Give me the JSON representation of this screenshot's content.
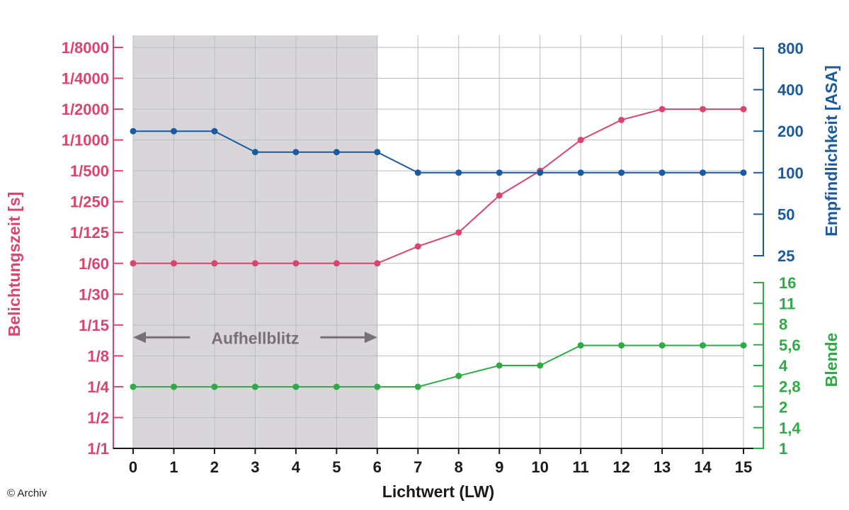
{
  "credit": "© Archiv",
  "chart_data": {
    "type": "line",
    "xlabel": "Lichtwert (LW)",
    "x": [
      0,
      1,
      2,
      3,
      4,
      5,
      6,
      7,
      8,
      9,
      10,
      11,
      12,
      13,
      14,
      15
    ],
    "xlim": [
      0,
      15
    ],
    "grid": true,
    "colors": {
      "shutter": "#d9456e",
      "iso": "#1a5aa0",
      "aperture": "#2eaa46",
      "shade": "#d9d6da",
      "annotation": "#7a6e7a"
    },
    "shaded_region": {
      "x_from": 0,
      "x_to": 6
    },
    "annotation": {
      "text": "Aufhellblitz",
      "from": 0,
      "to": 6,
      "shutter_level": 3.6,
      "style": "double-arrow"
    },
    "axes": {
      "left": {
        "label": "Belichtungszeit [s]",
        "ticks": [
          "1/1",
          "1/2",
          "1/4",
          "1/8",
          "1/15",
          "1/30",
          "1/60",
          "1/125",
          "1/250",
          "1/500",
          "1/1000",
          "1/2000",
          "1/4000",
          "1/8000"
        ],
        "scale": "log2 stops (index 0 = 1/1, index 13 = 1/8000)"
      },
      "right_top": {
        "label": "Empfindlichkeit [ASA]",
        "ticks": [
          25,
          50,
          100,
          200,
          400,
          800
        ],
        "scale": "log"
      },
      "right_bottom": {
        "label": "Blende",
        "ticks": [
          "1",
          "1,4",
          "2",
          "2,8",
          "4",
          "5,6",
          "8",
          "11",
          "16"
        ],
        "scale": "f-stops"
      }
    },
    "series": [
      {
        "key": "shutter",
        "axis": "left",
        "values": [
          6,
          6,
          6,
          6,
          6,
          6,
          6,
          6.55,
          7,
          8.2,
          9,
          10,
          10.65,
          11,
          11,
          11
        ]
      },
      {
        "key": "iso",
        "axis": "right_top",
        "values": [
          200,
          200,
          200,
          141,
          141,
          141,
          141,
          100,
          100,
          100,
          100,
          100,
          100,
          100,
          100,
          100
        ]
      },
      {
        "key": "aperture",
        "axis": "right_bottom",
        "values": [
          2.8,
          2.8,
          2.8,
          2.8,
          2.8,
          2.8,
          2.8,
          2.8,
          3.36,
          4,
          4,
          5.6,
          5.6,
          5.6,
          5.6,
          5.6
        ]
      }
    ]
  }
}
